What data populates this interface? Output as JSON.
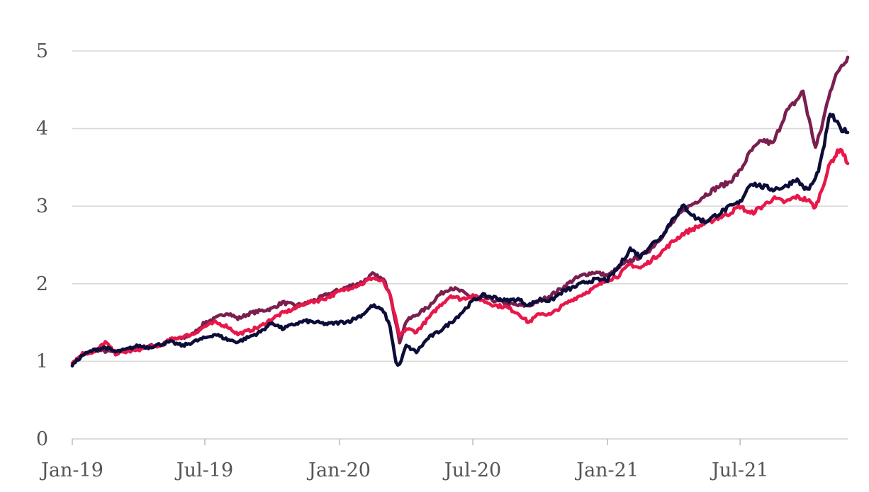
{
  "chart_data": {
    "type": "line",
    "title": "",
    "xlabel": "",
    "ylabel": "",
    "ylim": [
      0,
      5
    ],
    "yticks": [
      "0",
      "1",
      "2",
      "3",
      "4",
      "5"
    ],
    "xlim": [
      "2019-01-01",
      "2021-11-25"
    ],
    "xticks": [
      {
        "date": "2019-01-01",
        "label": "Jan-19"
      },
      {
        "date": "2019-07-01",
        "label": "Jul-19"
      },
      {
        "date": "2020-01-01",
        "label": "Jan-20"
      },
      {
        "date": "2020-07-01",
        "label": "Jul-20"
      },
      {
        "date": "2021-01-01",
        "label": "Jan-21"
      },
      {
        "date": "2021-07-01",
        "label": "Jul-21"
      }
    ],
    "grid": true,
    "legend": "none",
    "series": [
      {
        "color": "#7a1f4f",
        "points": [
          [
            "2019-01-01",
            0.97
          ],
          [
            "2019-01-15",
            1.08
          ],
          [
            "2019-02-01",
            1.15
          ],
          [
            "2019-02-15",
            1.13
          ],
          [
            "2019-03-01",
            1.12
          ],
          [
            "2019-03-15",
            1.14
          ],
          [
            "2019-04-01",
            1.16
          ],
          [
            "2019-04-15",
            1.2
          ],
          [
            "2019-05-01",
            1.2
          ],
          [
            "2019-05-15",
            1.28
          ],
          [
            "2019-06-01",
            1.3
          ],
          [
            "2019-06-15",
            1.35
          ],
          [
            "2019-07-01",
            1.5
          ],
          [
            "2019-07-15",
            1.55
          ],
          [
            "2019-08-01",
            1.63
          ],
          [
            "2019-08-15",
            1.55
          ],
          [
            "2019-09-01",
            1.62
          ],
          [
            "2019-09-15",
            1.65
          ],
          [
            "2019-10-01",
            1.68
          ],
          [
            "2019-10-15",
            1.76
          ],
          [
            "2019-11-01",
            1.72
          ],
          [
            "2019-11-15",
            1.74
          ],
          [
            "2019-12-01",
            1.8
          ],
          [
            "2019-12-15",
            1.86
          ],
          [
            "2020-01-01",
            1.92
          ],
          [
            "2020-01-15",
            1.97
          ],
          [
            "2020-02-01",
            2.02
          ],
          [
            "2020-02-15",
            2.12
          ],
          [
            "2020-03-01",
            2.05
          ],
          [
            "2020-03-10",
            1.88
          ],
          [
            "2020-03-23",
            1.25
          ],
          [
            "2020-04-01",
            1.52
          ],
          [
            "2020-04-15",
            1.6
          ],
          [
            "2020-05-01",
            1.7
          ],
          [
            "2020-05-15",
            1.85
          ],
          [
            "2020-06-01",
            1.95
          ],
          [
            "2020-06-15",
            1.9
          ],
          [
            "2020-07-01",
            1.82
          ],
          [
            "2020-07-15",
            1.82
          ],
          [
            "2020-08-01",
            1.78
          ],
          [
            "2020-08-15",
            1.75
          ],
          [
            "2020-09-01",
            1.72
          ],
          [
            "2020-09-15",
            1.72
          ],
          [
            "2020-10-01",
            1.78
          ],
          [
            "2020-10-15",
            1.85
          ],
          [
            "2020-11-01",
            1.95
          ],
          [
            "2020-11-15",
            2.05
          ],
          [
            "2020-12-01",
            2.12
          ],
          [
            "2020-12-15",
            2.15
          ],
          [
            "2021-01-01",
            2.1
          ],
          [
            "2021-01-15",
            2.2
          ],
          [
            "2021-02-01",
            2.3
          ],
          [
            "2021-02-15",
            2.35
          ],
          [
            "2021-03-01",
            2.45
          ],
          [
            "2021-03-15",
            2.6
          ],
          [
            "2021-04-01",
            2.8
          ],
          [
            "2021-04-15",
            2.95
          ],
          [
            "2021-05-01",
            3.05
          ],
          [
            "2021-05-15",
            3.15
          ],
          [
            "2021-06-01",
            3.25
          ],
          [
            "2021-06-15",
            3.3
          ],
          [
            "2021-07-01",
            3.45
          ],
          [
            "2021-07-15",
            3.7
          ],
          [
            "2021-08-01",
            3.85
          ],
          [
            "2021-08-15",
            3.8
          ],
          [
            "2021-09-01",
            4.2
          ],
          [
            "2021-09-15",
            4.35
          ],
          [
            "2021-09-25",
            4.48
          ],
          [
            "2021-10-01",
            4.2
          ],
          [
            "2021-10-12",
            3.75
          ],
          [
            "2021-10-20",
            4.0
          ],
          [
            "2021-11-01",
            4.5
          ],
          [
            "2021-11-15",
            4.8
          ],
          [
            "2021-11-25",
            4.92
          ]
        ]
      },
      {
        "color": "#e8174a",
        "points": [
          [
            "2019-01-01",
            0.98
          ],
          [
            "2019-01-15",
            1.1
          ],
          [
            "2019-02-01",
            1.12
          ],
          [
            "2019-02-15",
            1.25
          ],
          [
            "2019-03-01",
            1.1
          ],
          [
            "2019-03-15",
            1.12
          ],
          [
            "2019-04-01",
            1.15
          ],
          [
            "2019-04-15",
            1.18
          ],
          [
            "2019-05-01",
            1.2
          ],
          [
            "2019-05-15",
            1.28
          ],
          [
            "2019-06-01",
            1.32
          ],
          [
            "2019-06-15",
            1.35
          ],
          [
            "2019-07-01",
            1.45
          ],
          [
            "2019-07-15",
            1.5
          ],
          [
            "2019-08-01",
            1.45
          ],
          [
            "2019-08-15",
            1.35
          ],
          [
            "2019-09-01",
            1.4
          ],
          [
            "2019-09-15",
            1.45
          ],
          [
            "2019-10-01",
            1.55
          ],
          [
            "2019-10-15",
            1.62
          ],
          [
            "2019-11-01",
            1.68
          ],
          [
            "2019-11-15",
            1.75
          ],
          [
            "2019-12-01",
            1.78
          ],
          [
            "2019-12-15",
            1.82
          ],
          [
            "2020-01-01",
            1.9
          ],
          [
            "2020-01-15",
            1.95
          ],
          [
            "2020-02-01",
            2.0
          ],
          [
            "2020-02-15",
            2.08
          ],
          [
            "2020-03-01",
            2.02
          ],
          [
            "2020-03-10",
            1.85
          ],
          [
            "2020-03-23",
            1.32
          ],
          [
            "2020-04-01",
            1.42
          ],
          [
            "2020-04-15",
            1.38
          ],
          [
            "2020-05-01",
            1.55
          ],
          [
            "2020-05-15",
            1.7
          ],
          [
            "2020-06-01",
            1.85
          ],
          [
            "2020-06-15",
            1.8
          ],
          [
            "2020-07-01",
            1.85
          ],
          [
            "2020-07-15",
            1.78
          ],
          [
            "2020-08-01",
            1.72
          ],
          [
            "2020-08-15",
            1.7
          ],
          [
            "2020-09-01",
            1.62
          ],
          [
            "2020-09-15",
            1.5
          ],
          [
            "2020-10-01",
            1.62
          ],
          [
            "2020-10-15",
            1.6
          ],
          [
            "2020-11-01",
            1.72
          ],
          [
            "2020-11-15",
            1.8
          ],
          [
            "2020-12-01",
            1.88
          ],
          [
            "2020-12-15",
            1.95
          ],
          [
            "2021-01-01",
            2.05
          ],
          [
            "2021-01-15",
            2.1
          ],
          [
            "2021-02-01",
            2.25
          ],
          [
            "2021-02-15",
            2.2
          ],
          [
            "2021-03-01",
            2.3
          ],
          [
            "2021-03-15",
            2.4
          ],
          [
            "2021-04-01",
            2.55
          ],
          [
            "2021-04-15",
            2.65
          ],
          [
            "2021-05-01",
            2.72
          ],
          [
            "2021-05-15",
            2.78
          ],
          [
            "2021-06-01",
            2.85
          ],
          [
            "2021-06-15",
            2.9
          ],
          [
            "2021-07-01",
            3.0
          ],
          [
            "2021-07-15",
            2.9
          ],
          [
            "2021-08-01",
            3.0
          ],
          [
            "2021-08-15",
            3.1
          ],
          [
            "2021-09-01",
            3.05
          ],
          [
            "2021-09-15",
            3.12
          ],
          [
            "2021-10-01",
            3.08
          ],
          [
            "2021-10-12",
            2.98
          ],
          [
            "2021-10-20",
            3.2
          ],
          [
            "2021-11-01",
            3.55
          ],
          [
            "2021-11-15",
            3.75
          ],
          [
            "2021-11-25",
            3.55
          ]
        ]
      },
      {
        "color": "#0d0d3a",
        "points": [
          [
            "2019-01-01",
            0.95
          ],
          [
            "2019-01-15",
            1.08
          ],
          [
            "2019-02-01",
            1.15
          ],
          [
            "2019-02-15",
            1.18
          ],
          [
            "2019-03-01",
            1.12
          ],
          [
            "2019-03-15",
            1.15
          ],
          [
            "2019-04-01",
            1.2
          ],
          [
            "2019-04-15",
            1.18
          ],
          [
            "2019-05-01",
            1.22
          ],
          [
            "2019-05-15",
            1.25
          ],
          [
            "2019-06-01",
            1.2
          ],
          [
            "2019-06-15",
            1.25
          ],
          [
            "2019-07-01",
            1.3
          ],
          [
            "2019-07-15",
            1.35
          ],
          [
            "2019-08-01",
            1.28
          ],
          [
            "2019-08-15",
            1.25
          ],
          [
            "2019-09-01",
            1.32
          ],
          [
            "2019-09-15",
            1.38
          ],
          [
            "2019-10-01",
            1.5
          ],
          [
            "2019-10-15",
            1.42
          ],
          [
            "2019-11-01",
            1.48
          ],
          [
            "2019-11-15",
            1.52
          ],
          [
            "2019-12-01",
            1.5
          ],
          [
            "2019-12-15",
            1.48
          ],
          [
            "2020-01-01",
            1.5
          ],
          [
            "2020-01-15",
            1.52
          ],
          [
            "2020-02-01",
            1.6
          ],
          [
            "2020-02-15",
            1.72
          ],
          [
            "2020-03-01",
            1.65
          ],
          [
            "2020-03-10",
            1.45
          ],
          [
            "2020-03-18",
            0.98
          ],
          [
            "2020-03-23",
            0.95
          ],
          [
            "2020-04-01",
            1.2
          ],
          [
            "2020-04-15",
            1.12
          ],
          [
            "2020-05-01",
            1.3
          ],
          [
            "2020-05-15",
            1.38
          ],
          [
            "2020-06-01",
            1.5
          ],
          [
            "2020-06-15",
            1.62
          ],
          [
            "2020-07-01",
            1.78
          ],
          [
            "2020-07-15",
            1.85
          ],
          [
            "2020-08-01",
            1.82
          ],
          [
            "2020-08-15",
            1.78
          ],
          [
            "2020-09-01",
            1.8
          ],
          [
            "2020-09-15",
            1.72
          ],
          [
            "2020-10-01",
            1.8
          ],
          [
            "2020-10-15",
            1.78
          ],
          [
            "2020-11-01",
            1.9
          ],
          [
            "2020-11-15",
            1.95
          ],
          [
            "2020-12-01",
            2.02
          ],
          [
            "2020-12-15",
            2.05
          ],
          [
            "2021-01-01",
            2.05
          ],
          [
            "2021-01-15",
            2.2
          ],
          [
            "2021-02-01",
            2.45
          ],
          [
            "2021-02-15",
            2.35
          ],
          [
            "2021-03-01",
            2.5
          ],
          [
            "2021-03-15",
            2.6
          ],
          [
            "2021-04-01",
            2.85
          ],
          [
            "2021-04-15",
            3.0
          ],
          [
            "2021-05-01",
            2.85
          ],
          [
            "2021-05-15",
            2.8
          ],
          [
            "2021-06-01",
            2.9
          ],
          [
            "2021-06-15",
            2.98
          ],
          [
            "2021-07-01",
            3.05
          ],
          [
            "2021-07-15",
            3.3
          ],
          [
            "2021-08-01",
            3.25
          ],
          [
            "2021-08-15",
            3.22
          ],
          [
            "2021-09-01",
            3.25
          ],
          [
            "2021-09-15",
            3.35
          ],
          [
            "2021-10-01",
            3.2
          ],
          [
            "2021-10-12",
            3.35
          ],
          [
            "2021-10-20",
            3.6
          ],
          [
            "2021-11-01",
            4.2
          ],
          [
            "2021-11-15",
            4.0
          ],
          [
            "2021-11-25",
            3.95
          ]
        ]
      }
    ]
  }
}
